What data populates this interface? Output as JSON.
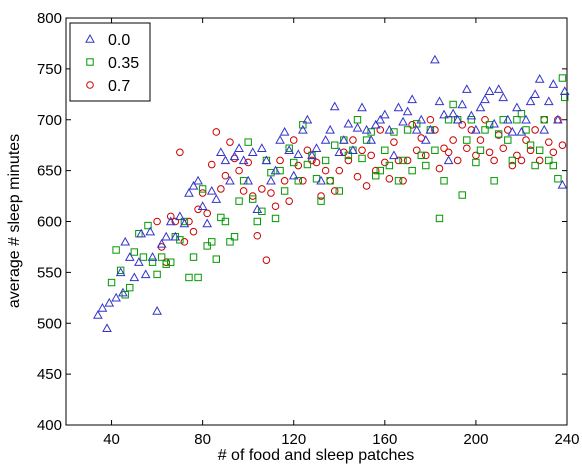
{
  "chart_data": {
    "type": "scatter",
    "title": "",
    "xlabel": "# of food and sleep patches",
    "ylabel": "average # sleep minutes",
    "xlim": [
      20,
      240
    ],
    "ylim": [
      400,
      800
    ],
    "xticks": [
      40,
      80,
      120,
      160,
      200,
      240
    ],
    "yticks": [
      400,
      450,
      500,
      550,
      600,
      650,
      700,
      750,
      800
    ],
    "grid": false,
    "legend_position": "top-left",
    "series": [
      {
        "name": "0.0",
        "marker": "triangle",
        "color": "#3333cc",
        "points": [
          [
            34,
            508
          ],
          [
            36,
            515
          ],
          [
            38,
            495
          ],
          [
            39,
            520
          ],
          [
            42,
            525
          ],
          [
            44,
            550
          ],
          [
            45,
            530
          ],
          [
            46,
            580
          ],
          [
            48,
            565
          ],
          [
            50,
            545
          ],
          [
            52,
            560
          ],
          [
            53,
            588
          ],
          [
            55,
            548
          ],
          [
            57,
            590
          ],
          [
            58,
            565
          ],
          [
            60,
            512
          ],
          [
            62,
            578
          ],
          [
            64,
            585
          ],
          [
            66,
            600
          ],
          [
            68,
            585
          ],
          [
            70,
            605
          ],
          [
            72,
            598
          ],
          [
            74,
            628
          ],
          [
            76,
            635
          ],
          [
            78,
            640
          ],
          [
            80,
            615
          ],
          [
            82,
            598
          ],
          [
            84,
            630
          ],
          [
            86,
            622
          ],
          [
            88,
            668
          ],
          [
            90,
            660
          ],
          [
            92,
            640
          ],
          [
            94,
            664
          ],
          [
            96,
            672
          ],
          [
            98,
            660
          ],
          [
            100,
            640
          ],
          [
            102,
            668
          ],
          [
            104,
            612
          ],
          [
            106,
            672
          ],
          [
            108,
            660
          ],
          [
            110,
            640
          ],
          [
            112,
            650
          ],
          [
            114,
            680
          ],
          [
            116,
            688
          ],
          [
            118,
            670
          ],
          [
            120,
            645
          ],
          [
            122,
            666
          ],
          [
            124,
            690
          ],
          [
            126,
            700
          ],
          [
            128,
            665
          ],
          [
            130,
            672
          ],
          [
            132,
            640
          ],
          [
            134,
            680
          ],
          [
            136,
            690
          ],
          [
            138,
            713
          ],
          [
            140,
            668
          ],
          [
            142,
            680
          ],
          [
            144,
            696
          ],
          [
            146,
            670
          ],
          [
            148,
            692
          ],
          [
            150,
            712
          ],
          [
            152,
            690
          ],
          [
            154,
            680
          ],
          [
            156,
            695
          ],
          [
            158,
            700
          ],
          [
            160,
            705
          ],
          [
            162,
            690
          ],
          [
            164,
            665
          ],
          [
            166,
            712
          ],
          [
            168,
            698
          ],
          [
            170,
            708
          ],
          [
            172,
            720
          ],
          [
            174,
            690
          ],
          [
            176,
            700
          ],
          [
            178,
            680
          ],
          [
            180,
            690
          ],
          [
            182,
            759
          ],
          [
            184,
            718
          ],
          [
            186,
            705
          ],
          [
            188,
            660
          ],
          [
            190,
            706
          ],
          [
            192,
            700
          ],
          [
            194,
            715
          ],
          [
            196,
            730
          ],
          [
            198,
            704
          ],
          [
            200,
            690
          ],
          [
            202,
            712
          ],
          [
            204,
            720
          ],
          [
            206,
            728
          ],
          [
            208,
            696
          ],
          [
            210,
            730
          ],
          [
            212,
            722
          ],
          [
            214,
            700
          ],
          [
            216,
            688
          ],
          [
            218,
            712
          ],
          [
            220,
            688
          ],
          [
            222,
            700
          ],
          [
            224,
            718
          ],
          [
            226,
            725
          ],
          [
            228,
            740
          ],
          [
            230,
            690
          ],
          [
            232,
            718
          ],
          [
            234,
            735
          ],
          [
            236,
            700
          ],
          [
            238,
            636
          ],
          [
            239,
            728
          ]
        ]
      },
      {
        "name": "0.35",
        "marker": "square",
        "color": "#009900",
        "points": [
          [
            40,
            540
          ],
          [
            42,
            572
          ],
          [
            44,
            552
          ],
          [
            46,
            528
          ],
          [
            48,
            535
          ],
          [
            50,
            570
          ],
          [
            52,
            588
          ],
          [
            54,
            565
          ],
          [
            56,
            596
          ],
          [
            58,
            560
          ],
          [
            60,
            548
          ],
          [
            62,
            565
          ],
          [
            64,
            558
          ],
          [
            66,
            560
          ],
          [
            68,
            585
          ],
          [
            70,
            582
          ],
          [
            72,
            600
          ],
          [
            74,
            545
          ],
          [
            76,
            565
          ],
          [
            78,
            545
          ],
          [
            80,
            632
          ],
          [
            82,
            576
          ],
          [
            84,
            580
          ],
          [
            86,
            563
          ],
          [
            88,
            604
          ],
          [
            90,
            600
          ],
          [
            92,
            580
          ],
          [
            94,
            585
          ],
          [
            96,
            620
          ],
          [
            98,
            640
          ],
          [
            100,
            678
          ],
          [
            102,
            622
          ],
          [
            104,
            600
          ],
          [
            106,
            610
          ],
          [
            108,
            660
          ],
          [
            110,
            648
          ],
          [
            112,
            603
          ],
          [
            114,
            650
          ],
          [
            116,
            630
          ],
          [
            118,
            672
          ],
          [
            120,
            658
          ],
          [
            122,
            640
          ],
          [
            124,
            695
          ],
          [
            126,
            656
          ],
          [
            128,
            665
          ],
          [
            130,
            642
          ],
          [
            132,
            620
          ],
          [
            134,
            660
          ],
          [
            136,
            640
          ],
          [
            138,
            675
          ],
          [
            140,
            630
          ],
          [
            142,
            680
          ],
          [
            144,
            665
          ],
          [
            146,
            670
          ],
          [
            148,
            700
          ],
          [
            150,
            662
          ],
          [
            152,
            680
          ],
          [
            154,
            688
          ],
          [
            156,
            645
          ],
          [
            158,
            650
          ],
          [
            160,
            670
          ],
          [
            162,
            655
          ],
          [
            164,
            688
          ],
          [
            166,
            640
          ],
          [
            168,
            660
          ],
          [
            170,
            690
          ],
          [
            172,
            650
          ],
          [
            174,
            696
          ],
          [
            176,
            665
          ],
          [
            178,
            655
          ],
          [
            180,
            690
          ],
          [
            182,
            670
          ],
          [
            184,
            603
          ],
          [
            186,
            640
          ],
          [
            188,
            700
          ],
          [
            190,
            715
          ],
          [
            192,
            700
          ],
          [
            194,
            626
          ],
          [
            196,
            680
          ],
          [
            198,
            700
          ],
          [
            200,
            658
          ],
          [
            202,
            670
          ],
          [
            204,
            690
          ],
          [
            206,
            695
          ],
          [
            208,
            640
          ],
          [
            210,
            686
          ],
          [
            212,
            700
          ],
          [
            214,
            680
          ],
          [
            216,
            660
          ],
          [
            218,
            700
          ],
          [
            220,
            706
          ],
          [
            222,
            690
          ],
          [
            224,
            675
          ],
          [
            226,
            655
          ],
          [
            228,
            670
          ],
          [
            230,
            700
          ],
          [
            232,
            660
          ],
          [
            234,
            655
          ],
          [
            236,
            642
          ],
          [
            238,
            741
          ],
          [
            239,
            722
          ]
        ]
      },
      {
        "name": "0.7",
        "marker": "circle",
        "color": "#cc0000",
        "points": [
          [
            60,
            600
          ],
          [
            62,
            575
          ],
          [
            64,
            560
          ],
          [
            66,
            605
          ],
          [
            68,
            600
          ],
          [
            70,
            668
          ],
          [
            72,
            580
          ],
          [
            74,
            600
          ],
          [
            76,
            590
          ],
          [
            78,
            612
          ],
          [
            80,
            628
          ],
          [
            82,
            608
          ],
          [
            84,
            656
          ],
          [
            86,
            688
          ],
          [
            88,
            632
          ],
          [
            90,
            645
          ],
          [
            92,
            678
          ],
          [
            94,
            662
          ],
          [
            96,
            650
          ],
          [
            98,
            630
          ],
          [
            100,
            658
          ],
          [
            102,
            625
          ],
          [
            104,
            586
          ],
          [
            106,
            632
          ],
          [
            108,
            562
          ],
          [
            110,
            628
          ],
          [
            112,
            615
          ],
          [
            114,
            660
          ],
          [
            116,
            640
          ],
          [
            118,
            620
          ],
          [
            120,
            680
          ],
          [
            122,
            655
          ],
          [
            124,
            640
          ],
          [
            126,
            670
          ],
          [
            128,
            660
          ],
          [
            130,
            658
          ],
          [
            132,
            625
          ],
          [
            134,
            650
          ],
          [
            136,
            640
          ],
          [
            138,
            630
          ],
          [
            140,
            650
          ],
          [
            142,
            668
          ],
          [
            144,
            660
          ],
          [
            146,
            680
          ],
          [
            148,
            644
          ],
          [
            150,
            670
          ],
          [
            152,
            635
          ],
          [
            154,
            665
          ],
          [
            156,
            650
          ],
          [
            158,
            690
          ],
          [
            160,
            658
          ],
          [
            162,
            642
          ],
          [
            164,
            678
          ],
          [
            166,
            660
          ],
          [
            168,
            640
          ],
          [
            170,
            660
          ],
          [
            172,
            695
          ],
          [
            174,
            670
          ],
          [
            176,
            682
          ],
          [
            178,
            665
          ],
          [
            180,
            700
          ],
          [
            182,
            690
          ],
          [
            184,
            652
          ],
          [
            186,
            672
          ],
          [
            188,
            668
          ],
          [
            190,
            680
          ],
          [
            192,
            660
          ],
          [
            194,
            695
          ],
          [
            196,
            672
          ],
          [
            198,
            690
          ],
          [
            200,
            665
          ],
          [
            202,
            680
          ],
          [
            204,
            700
          ],
          [
            206,
            668
          ],
          [
            208,
            660
          ],
          [
            210,
            685
          ],
          [
            212,
            672
          ],
          [
            214,
            690
          ],
          [
            216,
            655
          ],
          [
            218,
            665
          ],
          [
            220,
            660
          ],
          [
            222,
            680
          ],
          [
            224,
            670
          ],
          [
            226,
            690
          ],
          [
            228,
            660
          ],
          [
            230,
            700
          ],
          [
            232,
            678
          ],
          [
            234,
            668
          ],
          [
            236,
            700
          ],
          [
            238,
            675
          ]
        ]
      }
    ]
  }
}
